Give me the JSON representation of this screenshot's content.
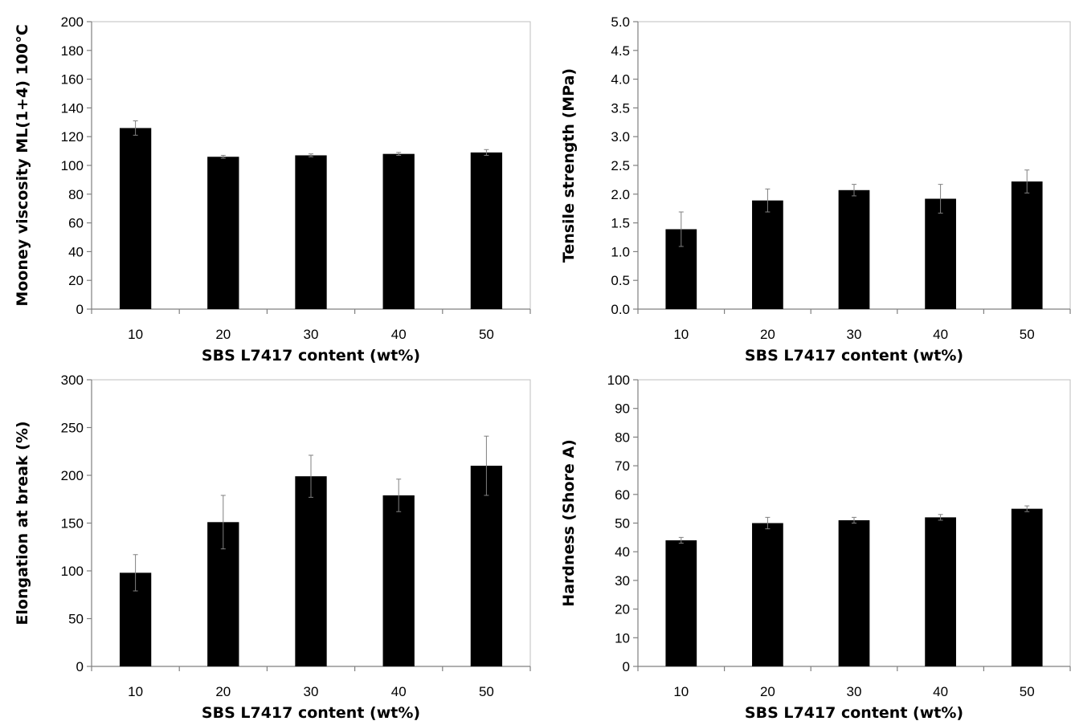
{
  "chart_data": [
    {
      "type": "bar",
      "categories": [
        "10",
        "20",
        "30",
        "40",
        "50"
      ],
      "values": [
        126,
        106,
        107,
        108,
        109
      ],
      "errors": [
        5,
        1,
        1,
        1,
        2
      ],
      "xlabel": "SBS L7417 content (wt%)",
      "ylabel": "Mooney viscosity ML(1+4) 100°C",
      "ylim": [
        0,
        200
      ],
      "yticks": [
        "0",
        "20",
        "40",
        "60",
        "80",
        "100",
        "120",
        "140",
        "160",
        "180",
        "200"
      ],
      "bar_color": "#000000",
      "grid": false
    },
    {
      "type": "bar",
      "categories": [
        "10",
        "20",
        "30",
        "40",
        "50"
      ],
      "values": [
        1.39,
        1.89,
        2.07,
        1.92,
        2.22
      ],
      "errors": [
        0.3,
        0.2,
        0.1,
        0.25,
        0.2
      ],
      "xlabel": "SBS L7417 content (wt%)",
      "ylabel": "Tensile strength (MPa)",
      "ylim": [
        0,
        5
      ],
      "yticks": [
        "0.0",
        "0.5",
        "1.0",
        "1.5",
        "2.0",
        "2.5",
        "3.0",
        "3.5",
        "4.0",
        "4.5",
        "5.0"
      ],
      "bar_color": "#000000",
      "grid": false
    },
    {
      "type": "bar",
      "categories": [
        "10",
        "20",
        "30",
        "40",
        "50"
      ],
      "values": [
        98,
        151,
        199,
        179,
        210
      ],
      "errors": [
        19,
        28,
        22,
        17,
        31
      ],
      "xlabel": "SBS L7417 content (wt%)",
      "ylabel": "Elongation at break (%)",
      "ylim": [
        0,
        300
      ],
      "yticks": [
        "0",
        "50",
        "100",
        "150",
        "200",
        "250",
        "300"
      ],
      "bar_color": "#000000",
      "grid": false
    },
    {
      "type": "bar",
      "categories": [
        "10",
        "20",
        "30",
        "40",
        "50"
      ],
      "values": [
        44,
        50,
        51,
        52,
        55
      ],
      "errors": [
        1,
        2,
        1,
        1,
        1
      ],
      "xlabel": "SBS L7417 content (wt%)",
      "ylabel": "Hardness (Shore A)",
      "ylim": [
        0,
        100
      ],
      "yticks": [
        "0",
        "10",
        "20",
        "30",
        "40",
        "50",
        "60",
        "70",
        "80",
        "90",
        "100"
      ],
      "bar_color": "#000000",
      "grid": false
    }
  ]
}
